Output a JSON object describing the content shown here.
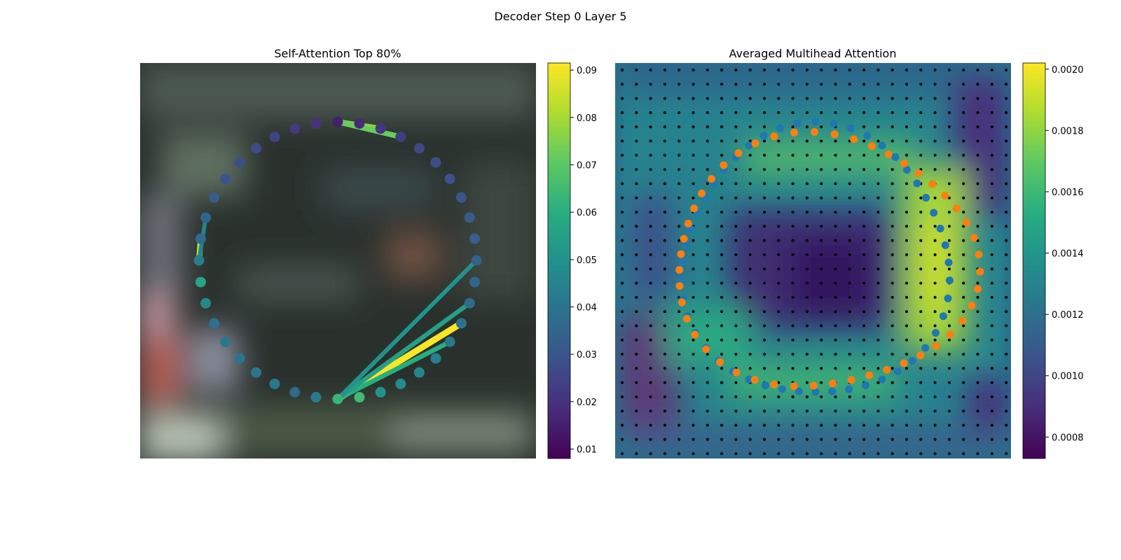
{
  "figure": {
    "suptitle": "Decoder Step 0 Layer 5"
  },
  "chart_data": [
    {
      "type": "scatter",
      "title": "Self-Attention Top 80%",
      "background": "blurred photo",
      "point_count": 40,
      "colorbar": {
        "colormap": "viridis",
        "range": [
          0.008,
          0.0915
        ],
        "ticks": [
          0.01,
          0.02,
          0.03,
          0.04,
          0.05,
          0.06,
          0.07,
          0.08,
          0.09
        ],
        "tick_labels": [
          "0.01",
          "0.02",
          "0.03",
          "0.04",
          "0.05",
          "0.06",
          "0.07",
          "0.08",
          "0.09"
        ]
      },
      "point_values": [
        0.063,
        0.042,
        0.036,
        0.041,
        0.04,
        0.04,
        0.041,
        0.039,
        0.046,
        0.057,
        0.043,
        0.037,
        0.035,
        0.032,
        0.03,
        0.028,
        0.027,
        0.025,
        0.022,
        0.02,
        0.015,
        0.018,
        0.021,
        0.023,
        0.026,
        0.028,
        0.029,
        0.03,
        0.032,
        0.033,
        0.034,
        0.035,
        0.037,
        0.039,
        0.041,
        0.044,
        0.046,
        0.048,
        0.05,
        0.065
      ],
      "attention_edges": [
        {
          "from": 0,
          "to": 33,
          "value": 0.091
        },
        {
          "from": 0,
          "to": 34,
          "value": 0.06
        },
        {
          "from": 0,
          "to": 32,
          "value": 0.055
        },
        {
          "from": 0,
          "to": 30,
          "value": 0.05
        },
        {
          "from": 10,
          "to": 11,
          "value": 0.082
        },
        {
          "from": 10,
          "to": 12,
          "value": 0.045
        },
        {
          "from": 20,
          "to": 22,
          "value": 0.076
        },
        {
          "from": 20,
          "to": 23,
          "value": 0.072
        }
      ]
    },
    {
      "type": "heatmap",
      "title": "Averaged Multihead Attention",
      "colorbar": {
        "colormap": "viridis",
        "range": [
          0.00073,
          0.00202
        ],
        "ticks": [
          0.0008,
          0.001,
          0.0012,
          0.0014,
          0.0016,
          0.0018,
          0.002
        ],
        "tick_labels": [
          "0.0008",
          "0.0010",
          "0.0012",
          "0.0014",
          "0.0016",
          "0.0018",
          "0.0020"
        ]
      },
      "grid_dots": {
        "rows": 28,
        "cols": 28,
        "color": "#000000"
      },
      "series": [
        {
          "color": "#1f77b4",
          "point_count": 48,
          "shape": "ring"
        },
        {
          "color": "#ff7f0e",
          "point_count": 48,
          "shape": "ring"
        }
      ]
    }
  ]
}
